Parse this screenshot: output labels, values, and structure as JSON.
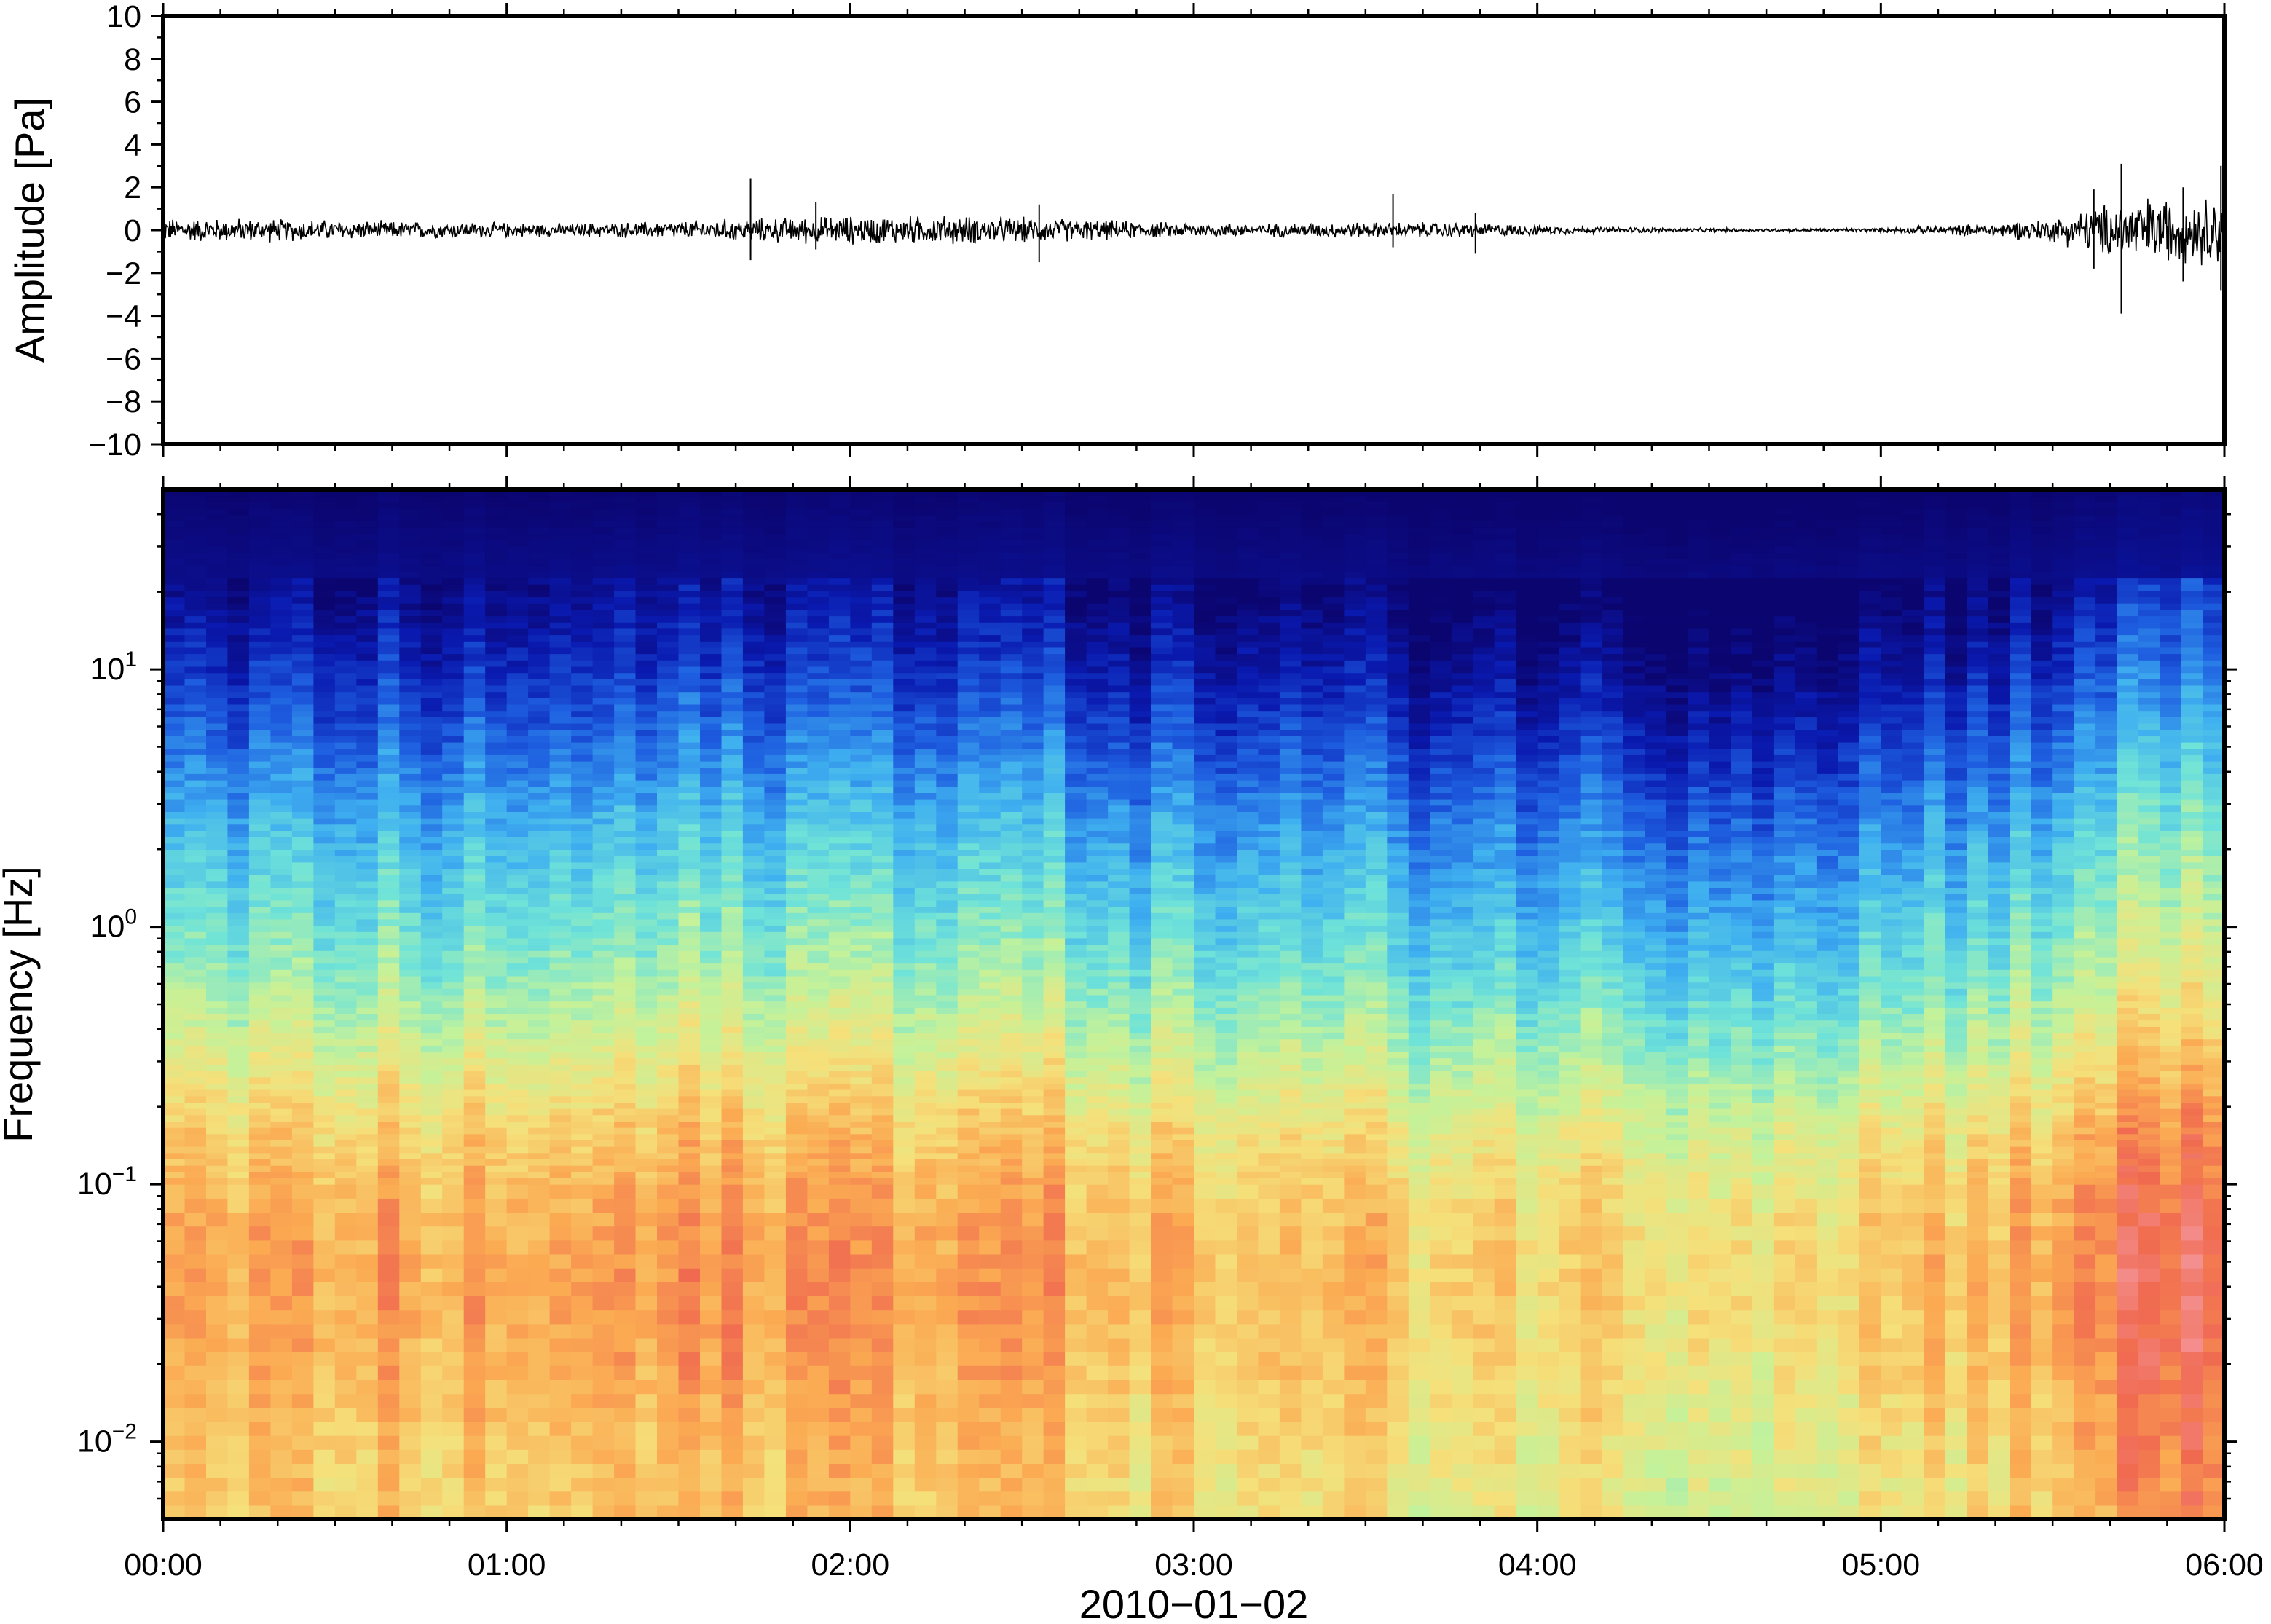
{
  "chart_data": [
    {
      "type": "line",
      "panel": "waveform",
      "ylabel": "Amplitude [Pa]",
      "ylim": [
        -10,
        10
      ],
      "yticks": [
        10,
        8,
        6,
        4,
        2,
        0,
        -2,
        -4,
        -6,
        -8,
        -10
      ],
      "ytick_labels": [
        "10",
        "8",
        "6",
        "4",
        "2",
        "0",
        "−2",
        "−4",
        "−6",
        "−8",
        "−10"
      ],
      "xlim": [
        "00:00",
        "06:00"
      ],
      "envelope": {
        "x_hours": [
          0,
          0.3,
          0.6,
          0.9,
          1.2,
          1.5,
          1.7,
          2.0,
          2.3,
          2.6,
          2.9,
          3.2,
          3.5,
          3.8,
          4.1,
          4.4,
          4.7,
          5.0,
          5.3,
          5.5,
          5.6,
          5.7,
          5.8,
          5.9,
          6.0
        ],
        "amplitude_pa": [
          0.45,
          0.45,
          0.35,
          0.3,
          0.25,
          0.35,
          0.45,
          0.55,
          0.55,
          0.45,
          0.3,
          0.25,
          0.3,
          0.3,
          0.15,
          0.08,
          0.06,
          0.08,
          0.25,
          0.45,
          0.8,
          1.2,
          1.3,
          1.2,
          1.4
        ]
      },
      "spikes": [
        {
          "x_hours": 1.71,
          "min": -1.4,
          "max": 2.4
        },
        {
          "x_hours": 1.9,
          "min": -0.9,
          "max": 1.3
        },
        {
          "x_hours": 2.55,
          "min": -1.5,
          "max": 1.2
        },
        {
          "x_hours": 3.58,
          "min": -0.8,
          "max": 1.7
        },
        {
          "x_hours": 3.82,
          "min": -1.1,
          "max": 0.8
        },
        {
          "x_hours": 5.62,
          "min": -1.8,
          "max": 1.9
        },
        {
          "x_hours": 5.7,
          "min": -3.9,
          "max": 3.1
        },
        {
          "x_hours": 5.88,
          "min": -2.4,
          "max": 2.0
        },
        {
          "x_hours": 5.99,
          "min": -2.8,
          "max": 3.0
        }
      ]
    },
    {
      "type": "heatmap",
      "panel": "spectrogram",
      "ylabel": "Frequency [Hz]",
      "yscale": "log",
      "ylim": [
        0.005,
        50
      ],
      "yticks": [
        {
          "base": "10",
          "exp": "1",
          "value": 10
        },
        {
          "base": "10",
          "exp": "0",
          "value": 1
        },
        {
          "base": "10",
          "exp": "−1",
          "value": 0.1
        },
        {
          "base": "10",
          "exp": "−2",
          "value": 0.01
        }
      ],
      "xlim": [
        "00:00",
        "06:00"
      ],
      "xticks": [
        "00:00",
        "01:00",
        "02:00",
        "03:00",
        "04:00",
        "05:00",
        "06:00"
      ],
      "xlabel": "2010−01−02",
      "colormap": [
        "#0b0570",
        "#0a1ab0",
        "#1e5fe0",
        "#3fb0f0",
        "#6fe3d8",
        "#c4f29a",
        "#f5e07a",
        "#fbaa52",
        "#f06a50",
        "#f59aa2"
      ],
      "level_scale": "0 = weakest (dark blue), 1 = strongest (pink)",
      "level_profile": {
        "log10_frequency": [
          -2.3,
          -2.0,
          -1.7,
          -1.4,
          -1.1,
          -0.8,
          -0.5,
          -0.2,
          0.1,
          0.4,
          0.7,
          1.0,
          1.3,
          1.7
        ],
        "level": [
          0.7,
          0.72,
          0.76,
          0.78,
          0.76,
          0.7,
          0.6,
          0.5,
          0.42,
          0.34,
          0.24,
          0.14,
          0.05,
          0.0
        ]
      },
      "time_offsets": {
        "x_hours": [
          0,
          0.5,
          1.0,
          1.5,
          2.0,
          2.5,
          3.0,
          3.5,
          4.0,
          4.5,
          5.0,
          5.4,
          5.7,
          6.0
        ],
        "level_offset": [
          0.0,
          0.0,
          -0.01,
          0.02,
          0.04,
          0.02,
          -0.04,
          -0.05,
          -0.07,
          -0.09,
          -0.06,
          0.0,
          0.1,
          0.14
        ]
      }
    }
  ]
}
